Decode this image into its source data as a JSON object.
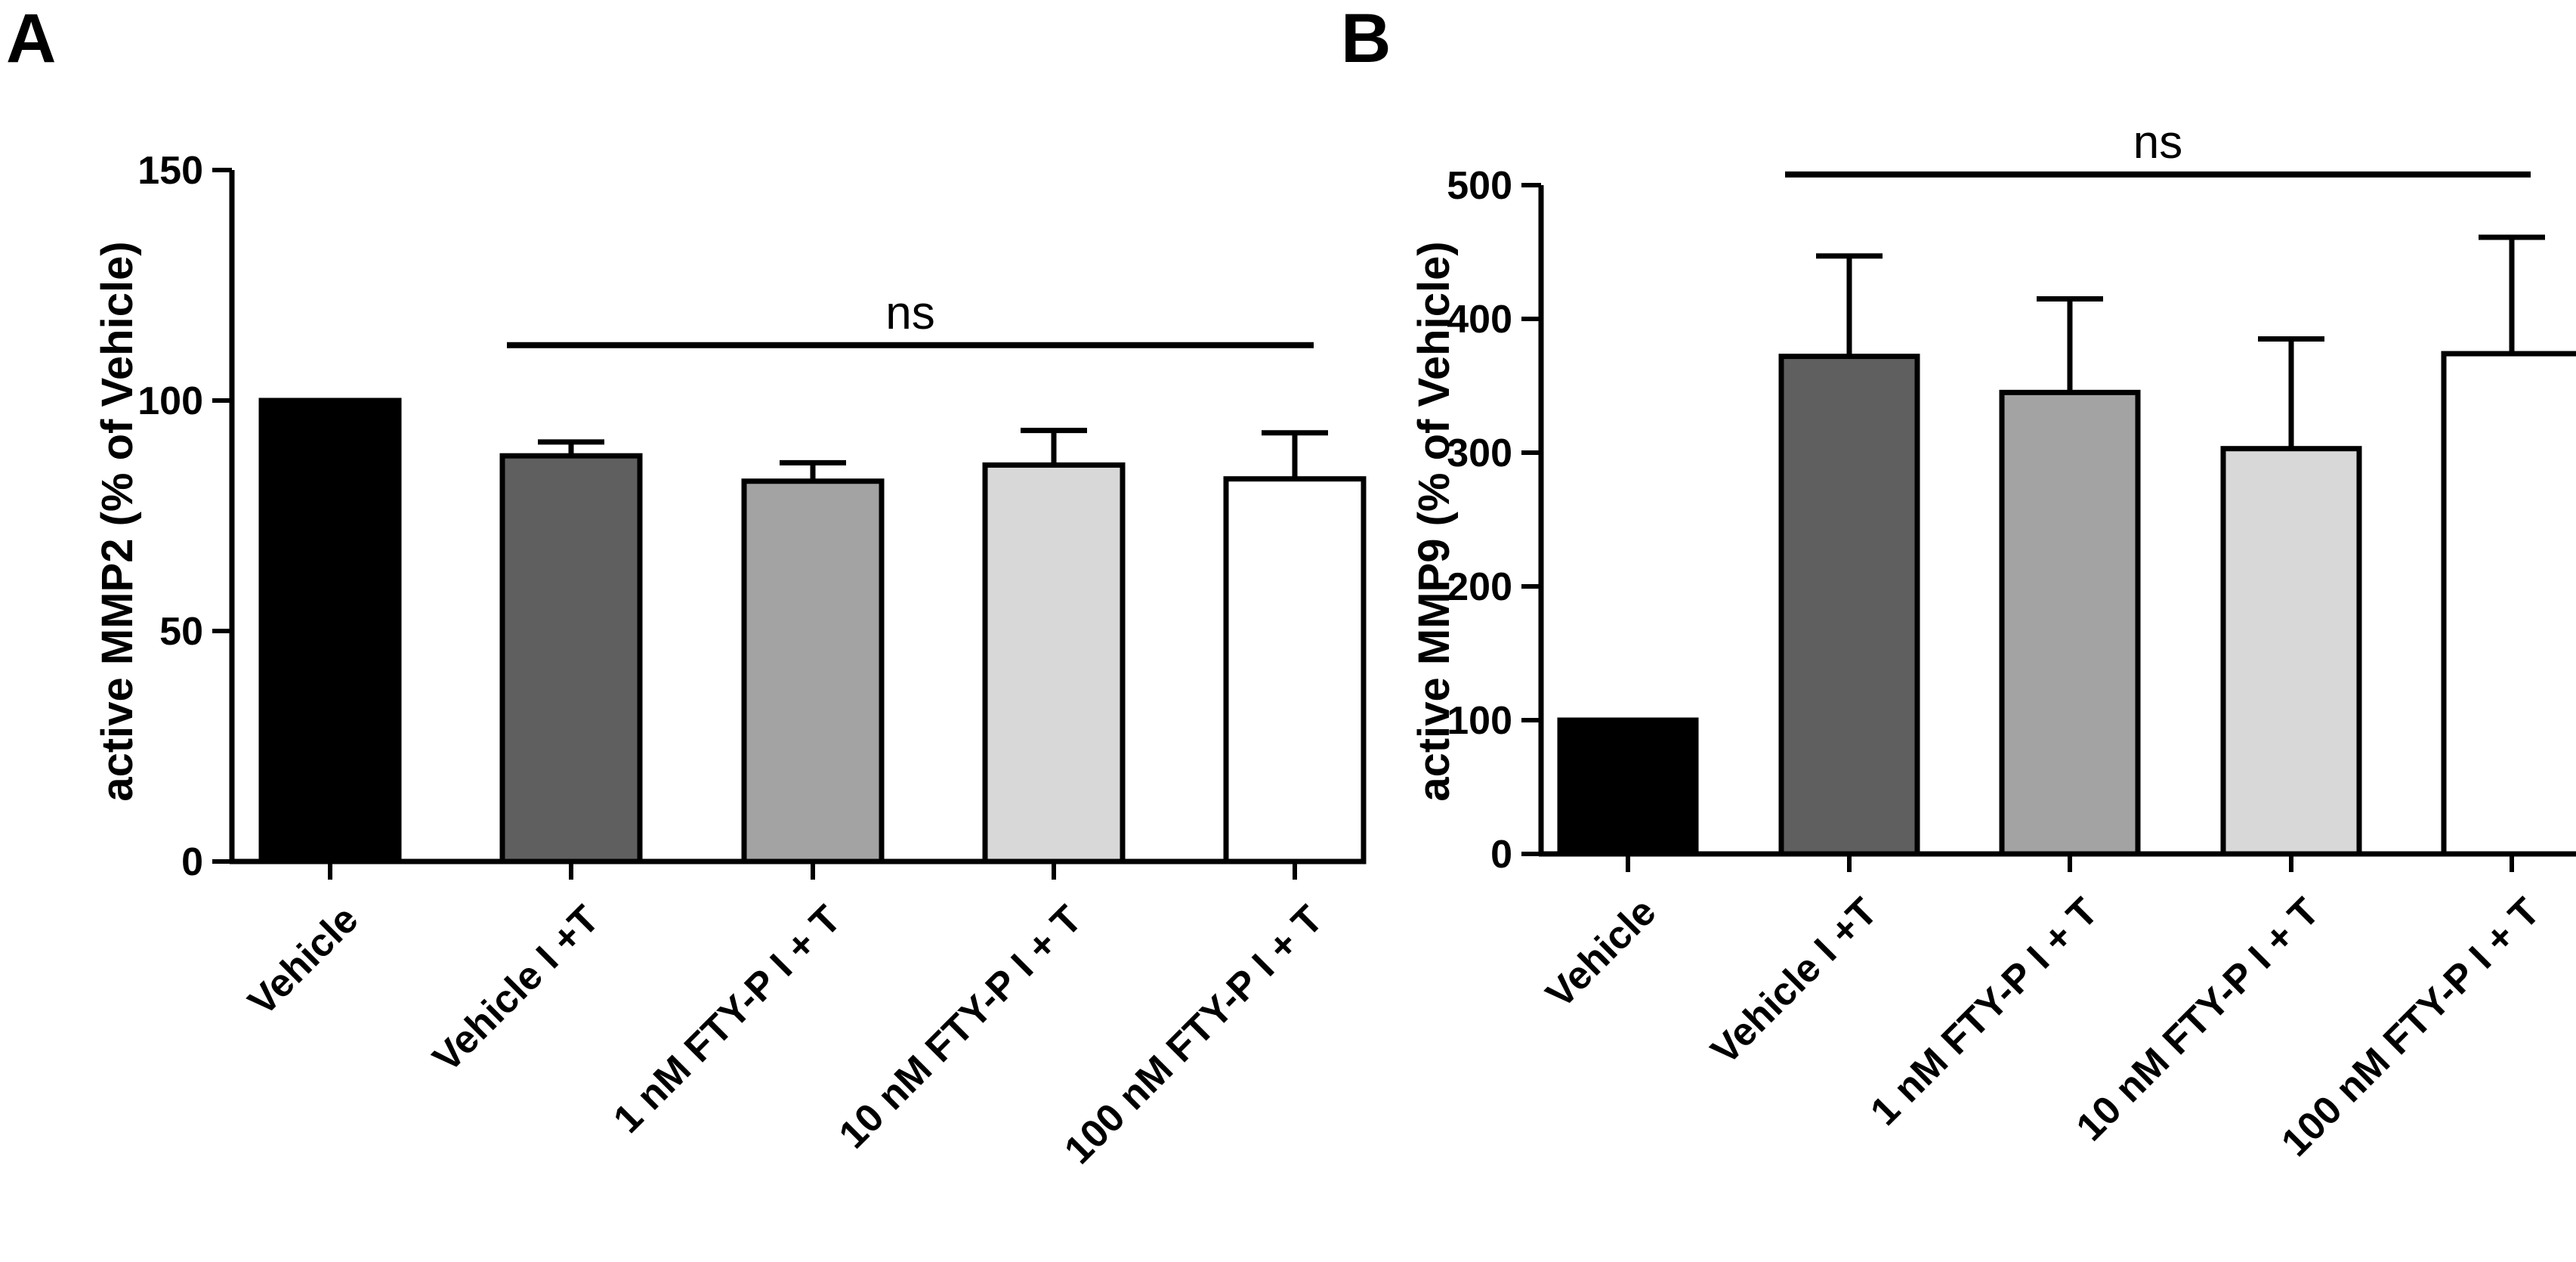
{
  "panels": [
    {
      "letter": "A",
      "chart_data": {
        "type": "bar",
        "title": "",
        "xlabel": "",
        "ylabel": "active MMP2 (%  of Vehicle)",
        "ylim": [
          0,
          150
        ],
        "yticks": [
          0,
          50,
          100,
          150
        ],
        "categories": [
          "Vehicle",
          "Vehicle I +T",
          "1 nM FTY-P I + T",
          "10 nM FTY-P I + T",
          "100 nM FTY-P I + T"
        ],
        "values": [
          100,
          88,
          82.5,
          86,
          83
        ],
        "error_upper": [
          0,
          3,
          4,
          7.5,
          10
        ],
        "bar_colors": [
          "#000000",
          "#5f5f5f",
          "#a3a3a3",
          "#d8d8d8",
          "#ffffff"
        ],
        "significance": {
          "label": "ns",
          "from_index": 1,
          "to_index": 4,
          "y": 112
        },
        "grid": false
      }
    },
    {
      "letter": "B",
      "chart_data": {
        "type": "bar",
        "title": "",
        "xlabel": "",
        "ylabel": "active MMP9 (% of Vehicle)",
        "ylim": [
          0,
          500
        ],
        "yticks": [
          0,
          100,
          200,
          300,
          400,
          500
        ],
        "categories": [
          "Vehicle",
          "Vehicle I +T",
          "1 nM FTY-P I + T",
          "10 nM FTY-P I + T",
          "100 nM FTY-P I + T"
        ],
        "values": [
          100,
          372,
          345,
          303,
          374
        ],
        "error_upper": [
          0,
          75,
          70,
          82,
          87
        ],
        "bar_colors": [
          "#000000",
          "#5f5f5f",
          "#a3a3a3",
          "#d8d8d8",
          "#ffffff"
        ],
        "significance": {
          "label": "ns",
          "from_index": 1,
          "to_index": 4,
          "y": 508
        },
        "grid": false
      }
    }
  ]
}
